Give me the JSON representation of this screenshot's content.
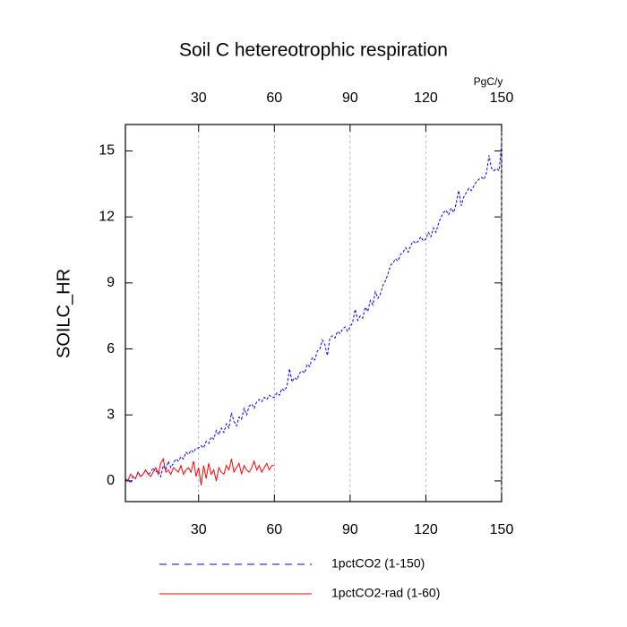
{
  "chart_data": {
    "type": "line",
    "title": "Soil C hetereotrophic respiration",
    "ylabel": "SOILC_HR",
    "x2label": "PgC/y",
    "x": [
      1,
      2,
      3,
      4,
      5,
      6,
      7,
      8,
      9,
      10,
      11,
      12,
      13,
      14,
      15,
      16,
      17,
      18,
      19,
      20,
      21,
      22,
      23,
      24,
      25,
      26,
      27,
      28,
      29,
      30,
      31,
      32,
      33,
      34,
      35,
      36,
      37,
      38,
      39,
      40,
      41,
      42,
      43,
      44,
      45,
      46,
      47,
      48,
      49,
      50,
      51,
      52,
      53,
      54,
      55,
      56,
      57,
      58,
      59,
      60,
      61,
      62,
      63,
      64,
      65,
      66,
      67,
      68,
      69,
      70,
      71,
      72,
      73,
      74,
      75,
      76,
      77,
      78,
      79,
      80,
      81,
      82,
      83,
      84,
      85,
      86,
      87,
      88,
      89,
      90,
      91,
      92,
      93,
      94,
      95,
      96,
      97,
      98,
      99,
      100,
      101,
      102,
      103,
      104,
      105,
      106,
      107,
      108,
      109,
      110,
      111,
      112,
      113,
      114,
      115,
      116,
      117,
      118,
      119,
      120,
      121,
      122,
      123,
      124,
      125,
      126,
      127,
      128,
      129,
      130,
      131,
      132,
      133,
      134,
      135,
      136,
      137,
      138,
      139,
      140,
      141,
      142,
      143,
      144,
      145,
      146,
      147,
      148,
      149,
      150
    ],
    "series": [
      {
        "name": "1pctCO2 (1-150)",
        "color": "#0000ff",
        "dash": true,
        "values": [
          0.0,
          0.1,
          -0.1,
          0.2,
          0.1,
          0.4,
          0.2,
          0.3,
          0.5,
          0.3,
          0.4,
          0.6,
          0.4,
          0.5,
          0.2,
          0.7,
          0.5,
          0.9,
          0.6,
          0.8,
          1.0,
          0.9,
          1.1,
          1.0,
          1.3,
          1.2,
          1.4,
          1.3,
          1.5,
          1.5,
          1.6,
          1.5,
          1.8,
          1.7,
          2.0,
          1.9,
          2.3,
          2.1,
          2.4,
          2.2,
          2.6,
          2.4,
          3.1,
          2.7,
          2.5,
          2.9,
          2.8,
          3.3,
          3.0,
          3.4,
          3.5,
          3.3,
          3.6,
          3.7,
          3.6,
          3.8,
          3.7,
          3.9,
          3.8,
          3.8,
          4.0,
          3.9,
          4.2,
          4.1,
          4.3,
          5.1,
          4.5,
          4.7,
          4.6,
          4.9,
          5.0,
          4.9,
          5.3,
          5.2,
          5.6,
          5.5,
          5.9,
          6.0,
          6.4,
          6.2,
          5.7,
          6.5,
          6.6,
          6.5,
          6.8,
          6.7,
          6.9,
          7.0,
          6.8,
          7.0,
          7.2,
          7.8,
          7.3,
          7.5,
          7.4,
          7.9,
          7.7,
          8.2,
          8.0,
          8.6,
          8.3,
          8.5,
          8.9,
          9.1,
          9.4,
          9.8,
          9.9,
          10.1,
          10.0,
          10.3,
          10.4,
          10.6,
          10.4,
          10.7,
          10.9,
          10.8,
          10.9,
          11.1,
          10.9,
          11.0,
          11.3,
          11.1,
          11.5,
          11.3,
          11.7,
          12.0,
          12.2,
          12.3,
          12.1,
          12.4,
          12.2,
          12.6,
          13.2,
          12.5,
          12.9,
          13.1,
          13.3,
          13.2,
          13.4,
          13.6,
          13.7,
          13.8,
          13.7,
          14.0,
          14.8,
          14.2,
          14.1,
          14.2,
          14.1,
          15.3
        ]
      },
      {
        "name": "1pctCO2-rad (1-60)",
        "color": "#ff0000",
        "dash": false,
        "values": [
          0.1,
          0.0,
          0.3,
          0.2,
          0.1,
          0.4,
          0.2,
          0.3,
          0.5,
          0.3,
          0.2,
          0.4,
          0.6,
          0.3,
          0.8,
          1.0,
          0.4,
          0.5,
          0.3,
          0.6,
          0.5,
          0.4,
          0.7,
          0.3,
          0.5,
          0.6,
          0.4,
          0.9,
          0.2,
          0.6,
          -0.2,
          0.7,
          0.1,
          0.8,
          0.3,
          0.5,
          0.0,
          0.6,
          0.4,
          0.3,
          0.7,
          0.5,
          1.0,
          0.4,
          0.6,
          0.8,
          0.3,
          0.7,
          0.5,
          0.4,
          0.6,
          0.9,
          0.5,
          0.7,
          0.4,
          0.6,
          0.8,
          0.5,
          0.7,
          0.7,
          null,
          null,
          null,
          null,
          null,
          null,
          null,
          null,
          null,
          null,
          null,
          null,
          null,
          null,
          null,
          null,
          null,
          null,
          null,
          null,
          null,
          null,
          null,
          null,
          null,
          null,
          null,
          null,
          null,
          null,
          null,
          null,
          null,
          null,
          null,
          null,
          null,
          null,
          null,
          null,
          null,
          null,
          null,
          null,
          null,
          null,
          null,
          null,
          null,
          null,
          null,
          null,
          null,
          null,
          null,
          null,
          null,
          null,
          null,
          null,
          null,
          null,
          null,
          null,
          null,
          null,
          null,
          null,
          null,
          null,
          null,
          null,
          null,
          null,
          null,
          null,
          null,
          null,
          null,
          null,
          null,
          null,
          null,
          null,
          null,
          null,
          null,
          null,
          null,
          null
        ]
      }
    ],
    "xlim": [
      1,
      150
    ],
    "xticks": [
      30,
      60,
      90,
      120,
      150
    ],
    "xtick_color": "#ff0000",
    "x2ticks": [
      30,
      60,
      90,
      120,
      150
    ],
    "x2tick_color": "#0000ff",
    "ylim": [
      -0.94,
      16.2
    ],
    "yticks": [
      0,
      3,
      6,
      9,
      12,
      15
    ],
    "grid": true
  }
}
